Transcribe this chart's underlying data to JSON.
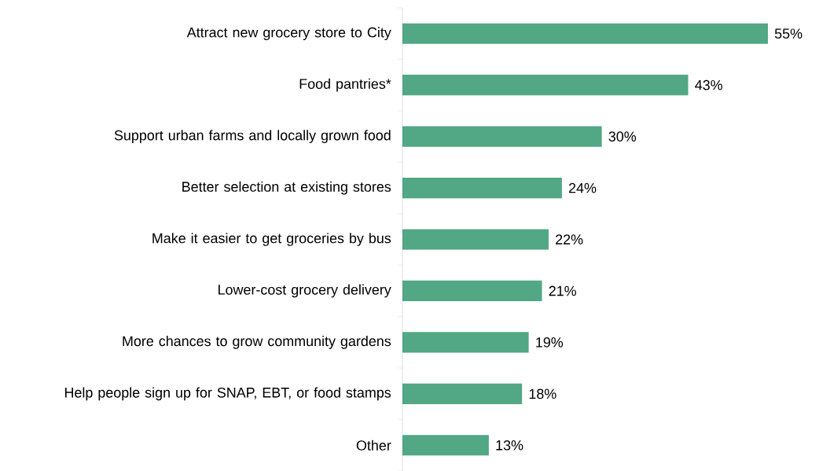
{
  "chart_data": {
    "type": "bar",
    "orientation": "horizontal",
    "categories": [
      "Attract new grocery store to City",
      "Food pantries*",
      "Support urban farms and locally grown food",
      "Better selection at existing stores",
      "Make it easier to get groceries by bus",
      "Lower-cost grocery delivery",
      "More chances to grow community gardens",
      "Help people sign up for SNAP, EBT, or food stamps",
      "Other"
    ],
    "values": [
      55,
      43,
      30,
      24,
      22,
      21,
      19,
      18,
      13
    ],
    "value_labels": [
      "55%",
      "43%",
      "30%",
      "24%",
      "22%",
      "21%",
      "19%",
      "18%",
      "13%"
    ],
    "color": "#52a784"
  }
}
